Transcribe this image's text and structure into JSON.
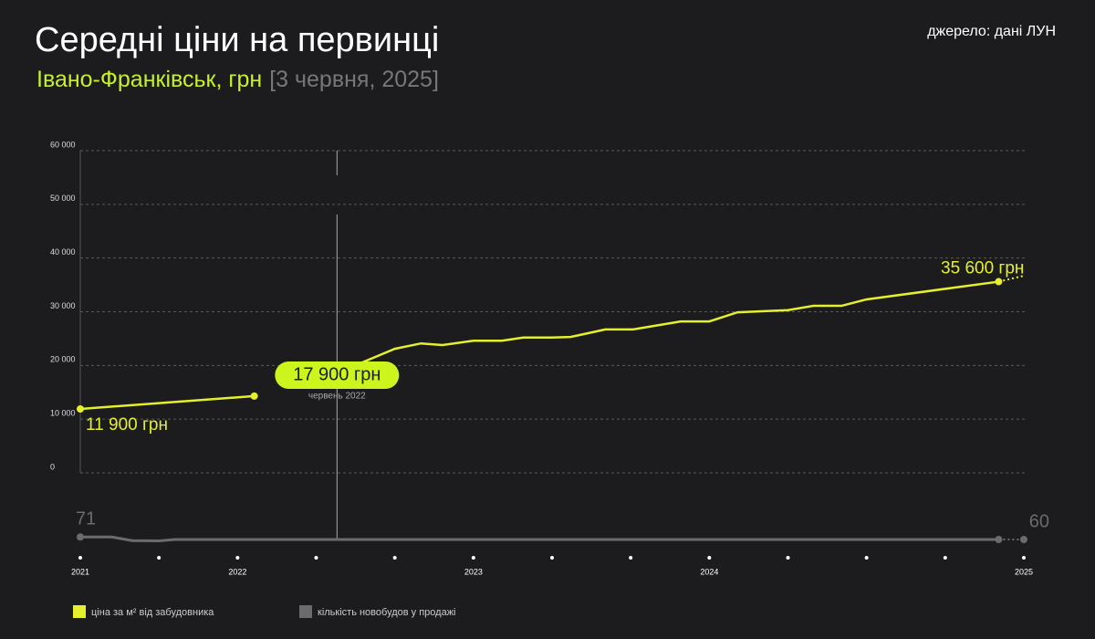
{
  "chart_data": {
    "type": "line",
    "title": "Середні ціни на первинці",
    "subtitle": "Івано-Франківськ, грн",
    "date": "[3 червня, 2025]",
    "source": "джерело: дані ЛУН",
    "xlim": [
      2021,
      2025
    ],
    "xticks": [
      2021,
      2022,
      2023,
      2024,
      2025
    ],
    "xminorticks": [
      2021.5,
      2022.33,
      2022.67,
      2023.33,
      2023.67,
      2024.25,
      2024.5,
      2024.75
    ],
    "ylim": [
      0,
      60000
    ],
    "yticks": [
      0,
      {
        "value": 10000,
        "label": "10 000"
      },
      {
        "value": 20000,
        "label": "20 000"
      },
      {
        "value": 30000,
        "label": "30 000"
      },
      {
        "value": 40000,
        "label": "40 000"
      },
      {
        "value": 50000,
        "label": "50 000"
      },
      {
        "value": 60000,
        "label": "60 000"
      }
    ],
    "y2lim": [
      0,
      80
    ],
    "grid": true,
    "series": [
      {
        "name": "ціна за м² від забудовника",
        "color": "#e4f02c",
        "dotted_last": true,
        "x": [
          2021,
          2022.07,
          null,
          2022.52,
          2022.67,
          2022.78,
          2022.87,
          2023,
          2023.12,
          2023.21,
          2023.33,
          2023.41,
          2023.56,
          2023.68,
          2023.88,
          2024,
          2024.09,
          2024.25,
          2024.33,
          2024.42,
          2024.5,
          2024.92,
          2025
        ],
        "values": [
          11900,
          14300,
          null,
          20400,
          23100,
          24100,
          23800,
          24600,
          24600,
          25200,
          25200,
          25300,
          26700,
          26700,
          28200,
          28200,
          29900,
          30300,
          31100,
          31100,
          32300,
          35600,
          36700
        ],
        "value_labels": [
          "11 900 грн",
          null,
          null,
          null,
          null,
          null,
          null,
          null,
          null,
          null,
          null,
          null,
          null,
          null,
          null,
          null,
          null,
          null,
          null,
          null,
          null,
          "35 600 грн",
          null
        ]
      },
      {
        "name": "кількість новобудов у продажі",
        "color": "#6b6b6b",
        "axis": "y2",
        "dotted_last": true,
        "x": [
          2021,
          2021.2,
          2021.33,
          2021.5,
          2021.6,
          2024.92,
          2025
        ],
        "values": [
          71,
          71,
          55,
          54,
          60,
          60,
          60
        ],
        "value_labels": [
          71,
          null,
          null,
          null,
          null,
          null,
          60
        ]
      }
    ],
    "annotation": {
      "x": 2022.42,
      "value": 17900,
      "label": "17 900 грн",
      "sublabel": "червень 2022"
    }
  }
}
